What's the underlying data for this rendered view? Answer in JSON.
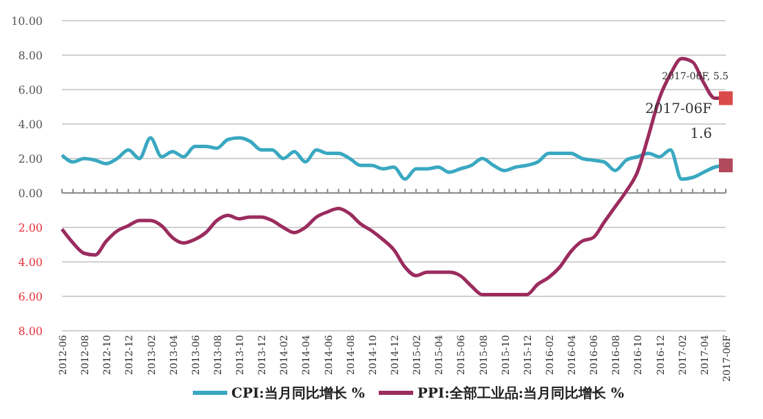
{
  "chart_data": {
    "type": "line",
    "categories": [
      "2012-06",
      null,
      "2012-08",
      null,
      "2012-10",
      null,
      "2012-12",
      null,
      "2013-02",
      null,
      "2013-04",
      null,
      "2013-06",
      null,
      "2013-08",
      null,
      "2013-10",
      null,
      "2013-12",
      null,
      "2014-02",
      null,
      "2014-04",
      null,
      "2014-06",
      null,
      "2014-08",
      null,
      "2014-10",
      null,
      "2014-12",
      null,
      "2015-02",
      null,
      "2015-04",
      null,
      "2015-06",
      null,
      "2015-08",
      null,
      "2015-10",
      null,
      "2015-12",
      null,
      "2016-02",
      null,
      "2016-04",
      null,
      "2016-06",
      null,
      "2016-08",
      null,
      "2016-10",
      null,
      "2016-12",
      null,
      "2017-02",
      null,
      "2017-04",
      null,
      "2017-06F"
    ],
    "series": [
      {
        "name": "CPI:当月同比增长 %",
        "color": "#3aa8c1",
        "values": [
          2.2,
          1.8,
          2.0,
          1.9,
          1.7,
          2.0,
          2.5,
          2.0,
          3.2,
          2.1,
          2.4,
          2.1,
          2.7,
          2.7,
          2.6,
          3.1,
          3.2,
          3.0,
          2.5,
          2.5,
          2.0,
          2.4,
          1.8,
          2.5,
          2.3,
          2.3,
          2.0,
          1.6,
          1.6,
          1.4,
          1.5,
          0.8,
          1.4,
          1.4,
          1.5,
          1.2,
          1.4,
          1.6,
          2.0,
          1.6,
          1.3,
          1.5,
          1.6,
          1.8,
          2.3,
          2.3,
          2.3,
          2.0,
          1.9,
          1.8,
          1.3,
          1.9,
          2.1,
          2.3,
          2.1,
          2.5,
          0.8,
          0.9,
          1.2,
          1.5,
          1.6
        ]
      },
      {
        "name": "PPI:全部工业品:当月同比增长 %",
        "color": "#9b2c5e",
        "values": [
          -2.1,
          -2.9,
          -3.5,
          -3.6,
          -2.8,
          -2.2,
          -1.9,
          -1.6,
          -1.6,
          -1.9,
          -2.6,
          -2.9,
          -2.7,
          -2.3,
          -1.6,
          -1.3,
          -1.5,
          -1.4,
          -1.4,
          -1.6,
          -2.0,
          -2.3,
          -2.0,
          -1.4,
          -1.1,
          -0.9,
          -1.2,
          -1.8,
          -2.2,
          -2.7,
          -3.3,
          -4.3,
          -4.8,
          -4.6,
          -4.6,
          -4.6,
          -4.8,
          -5.4,
          -5.9,
          -5.9,
          -5.9,
          -5.9,
          -5.9,
          -5.3,
          -4.9,
          -4.3,
          -3.4,
          -2.8,
          -2.6,
          -1.7,
          -0.8,
          0.1,
          1.2,
          3.3,
          5.5,
          6.9,
          7.8,
          7.6,
          6.4,
          5.5,
          5.5
        ]
      }
    ],
    "ylim": [
      -8,
      10
    ],
    "yticks": [
      {
        "value": -8,
        "label": "8.00"
      },
      {
        "value": -6,
        "label": "6.00"
      },
      {
        "value": -4,
        "label": "4.00"
      },
      {
        "value": -2,
        "label": "2.00"
      },
      {
        "value": 0,
        "label": "0.00"
      },
      {
        "value": 2,
        "label": "2.00"
      },
      {
        "value": 4,
        "label": "4.00"
      },
      {
        "value": 6,
        "label": "6.00"
      },
      {
        "value": 8,
        "label": "8.00"
      },
      {
        "value": 10,
        "label": "10.00"
      }
    ],
    "grid": "y",
    "legend": "bottom",
    "marker": "none",
    "line_style": "solid",
    "annotations": [
      {
        "text": "2017-06F, 5.5",
        "x": "2017-06F",
        "y": 5.5
      },
      {
        "text": "2017-06F\n1.6",
        "x": "2017-06F",
        "y": 1.6
      }
    ]
  }
}
